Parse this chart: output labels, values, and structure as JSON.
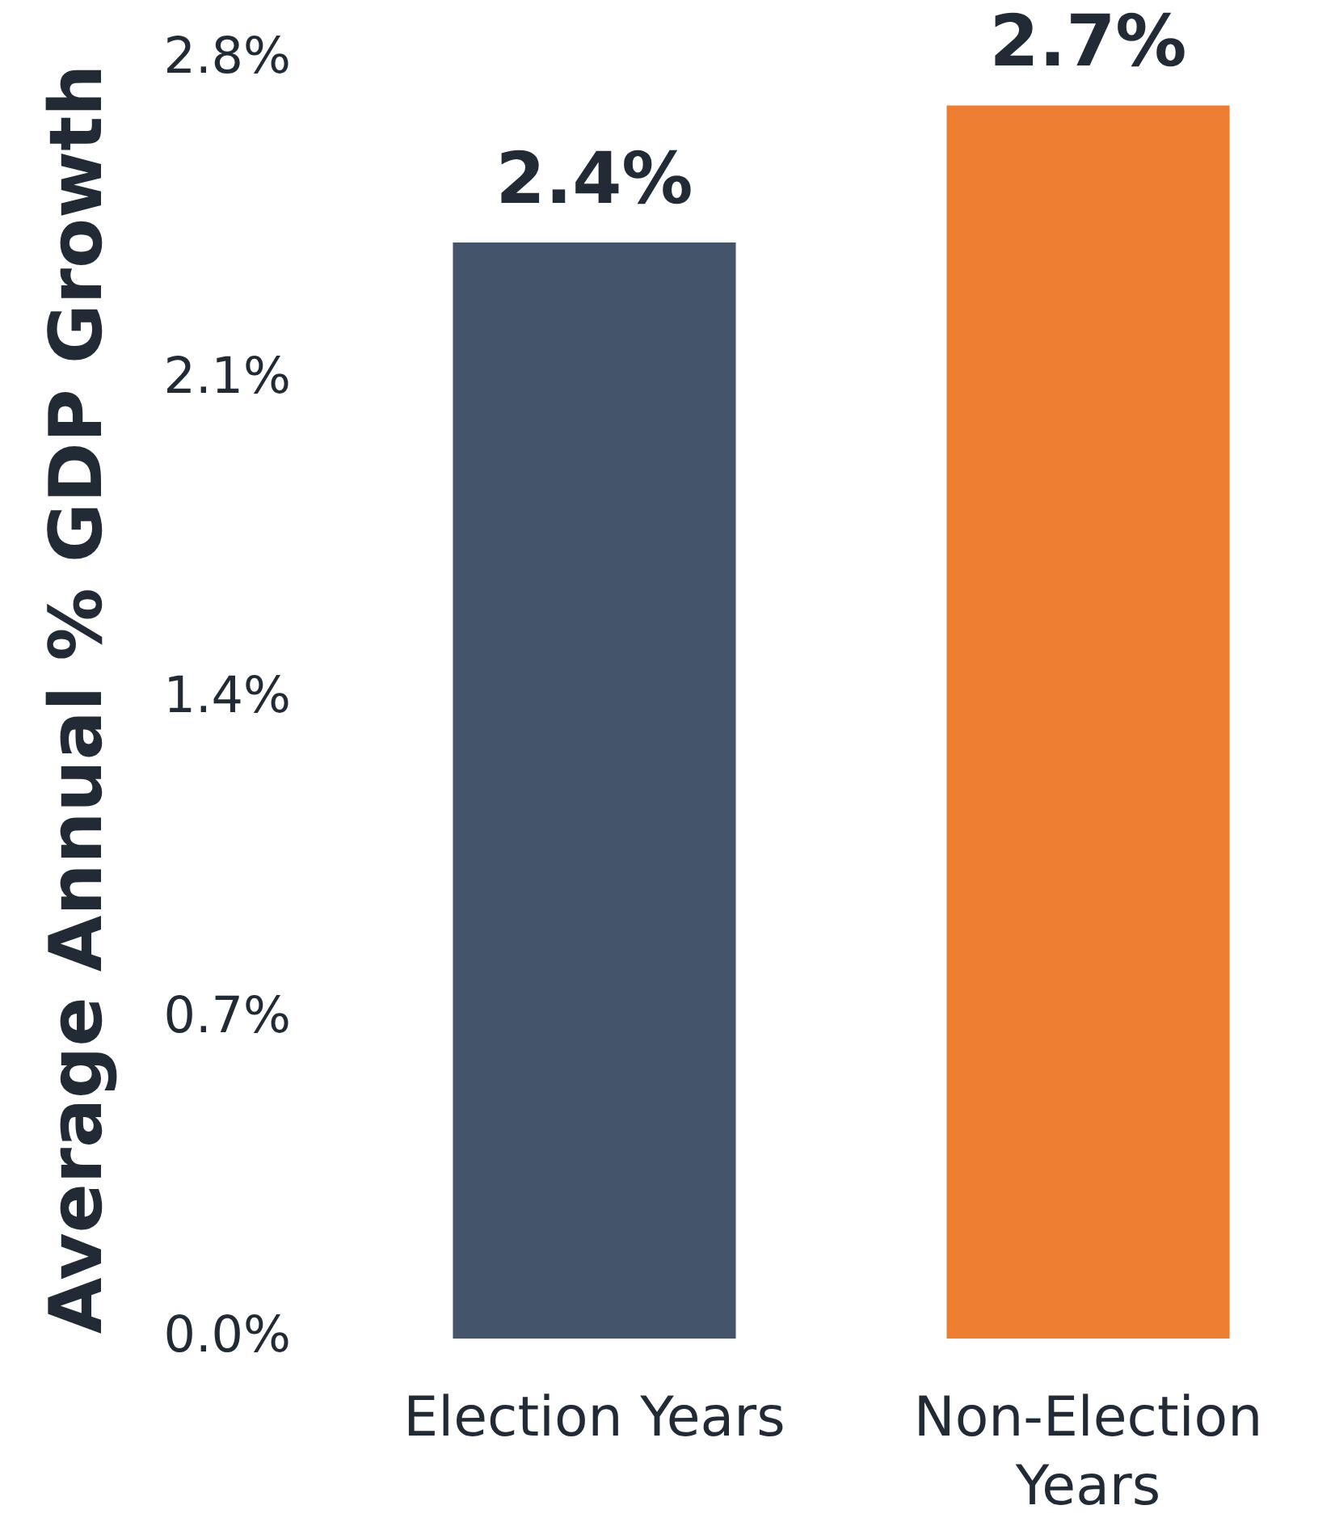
{
  "chart_data": {
    "type": "bar",
    "ylabel": "Average Annual % GDP Growth",
    "categories": [
      "Election Years",
      "Non-Election Years"
    ],
    "values": [
      2.4,
      2.7
    ],
    "colors": [
      "#44546a",
      "#ed7d31"
    ],
    "value_labels": [
      "2.4%",
      "2.7%"
    ],
    "ylim": [
      0,
      2.8
    ],
    "yticks": [
      {
        "value": 0,
        "label": "0.0%"
      },
      {
        "value": 0.7,
        "label": "0.7%"
      },
      {
        "value": 1.4,
        "label": "1.4%"
      },
      {
        "value": 2.1,
        "label": "2.1%"
      },
      {
        "value": 2.8,
        "label": "2.8%"
      }
    ],
    "grid": false,
    "legend": false
  }
}
